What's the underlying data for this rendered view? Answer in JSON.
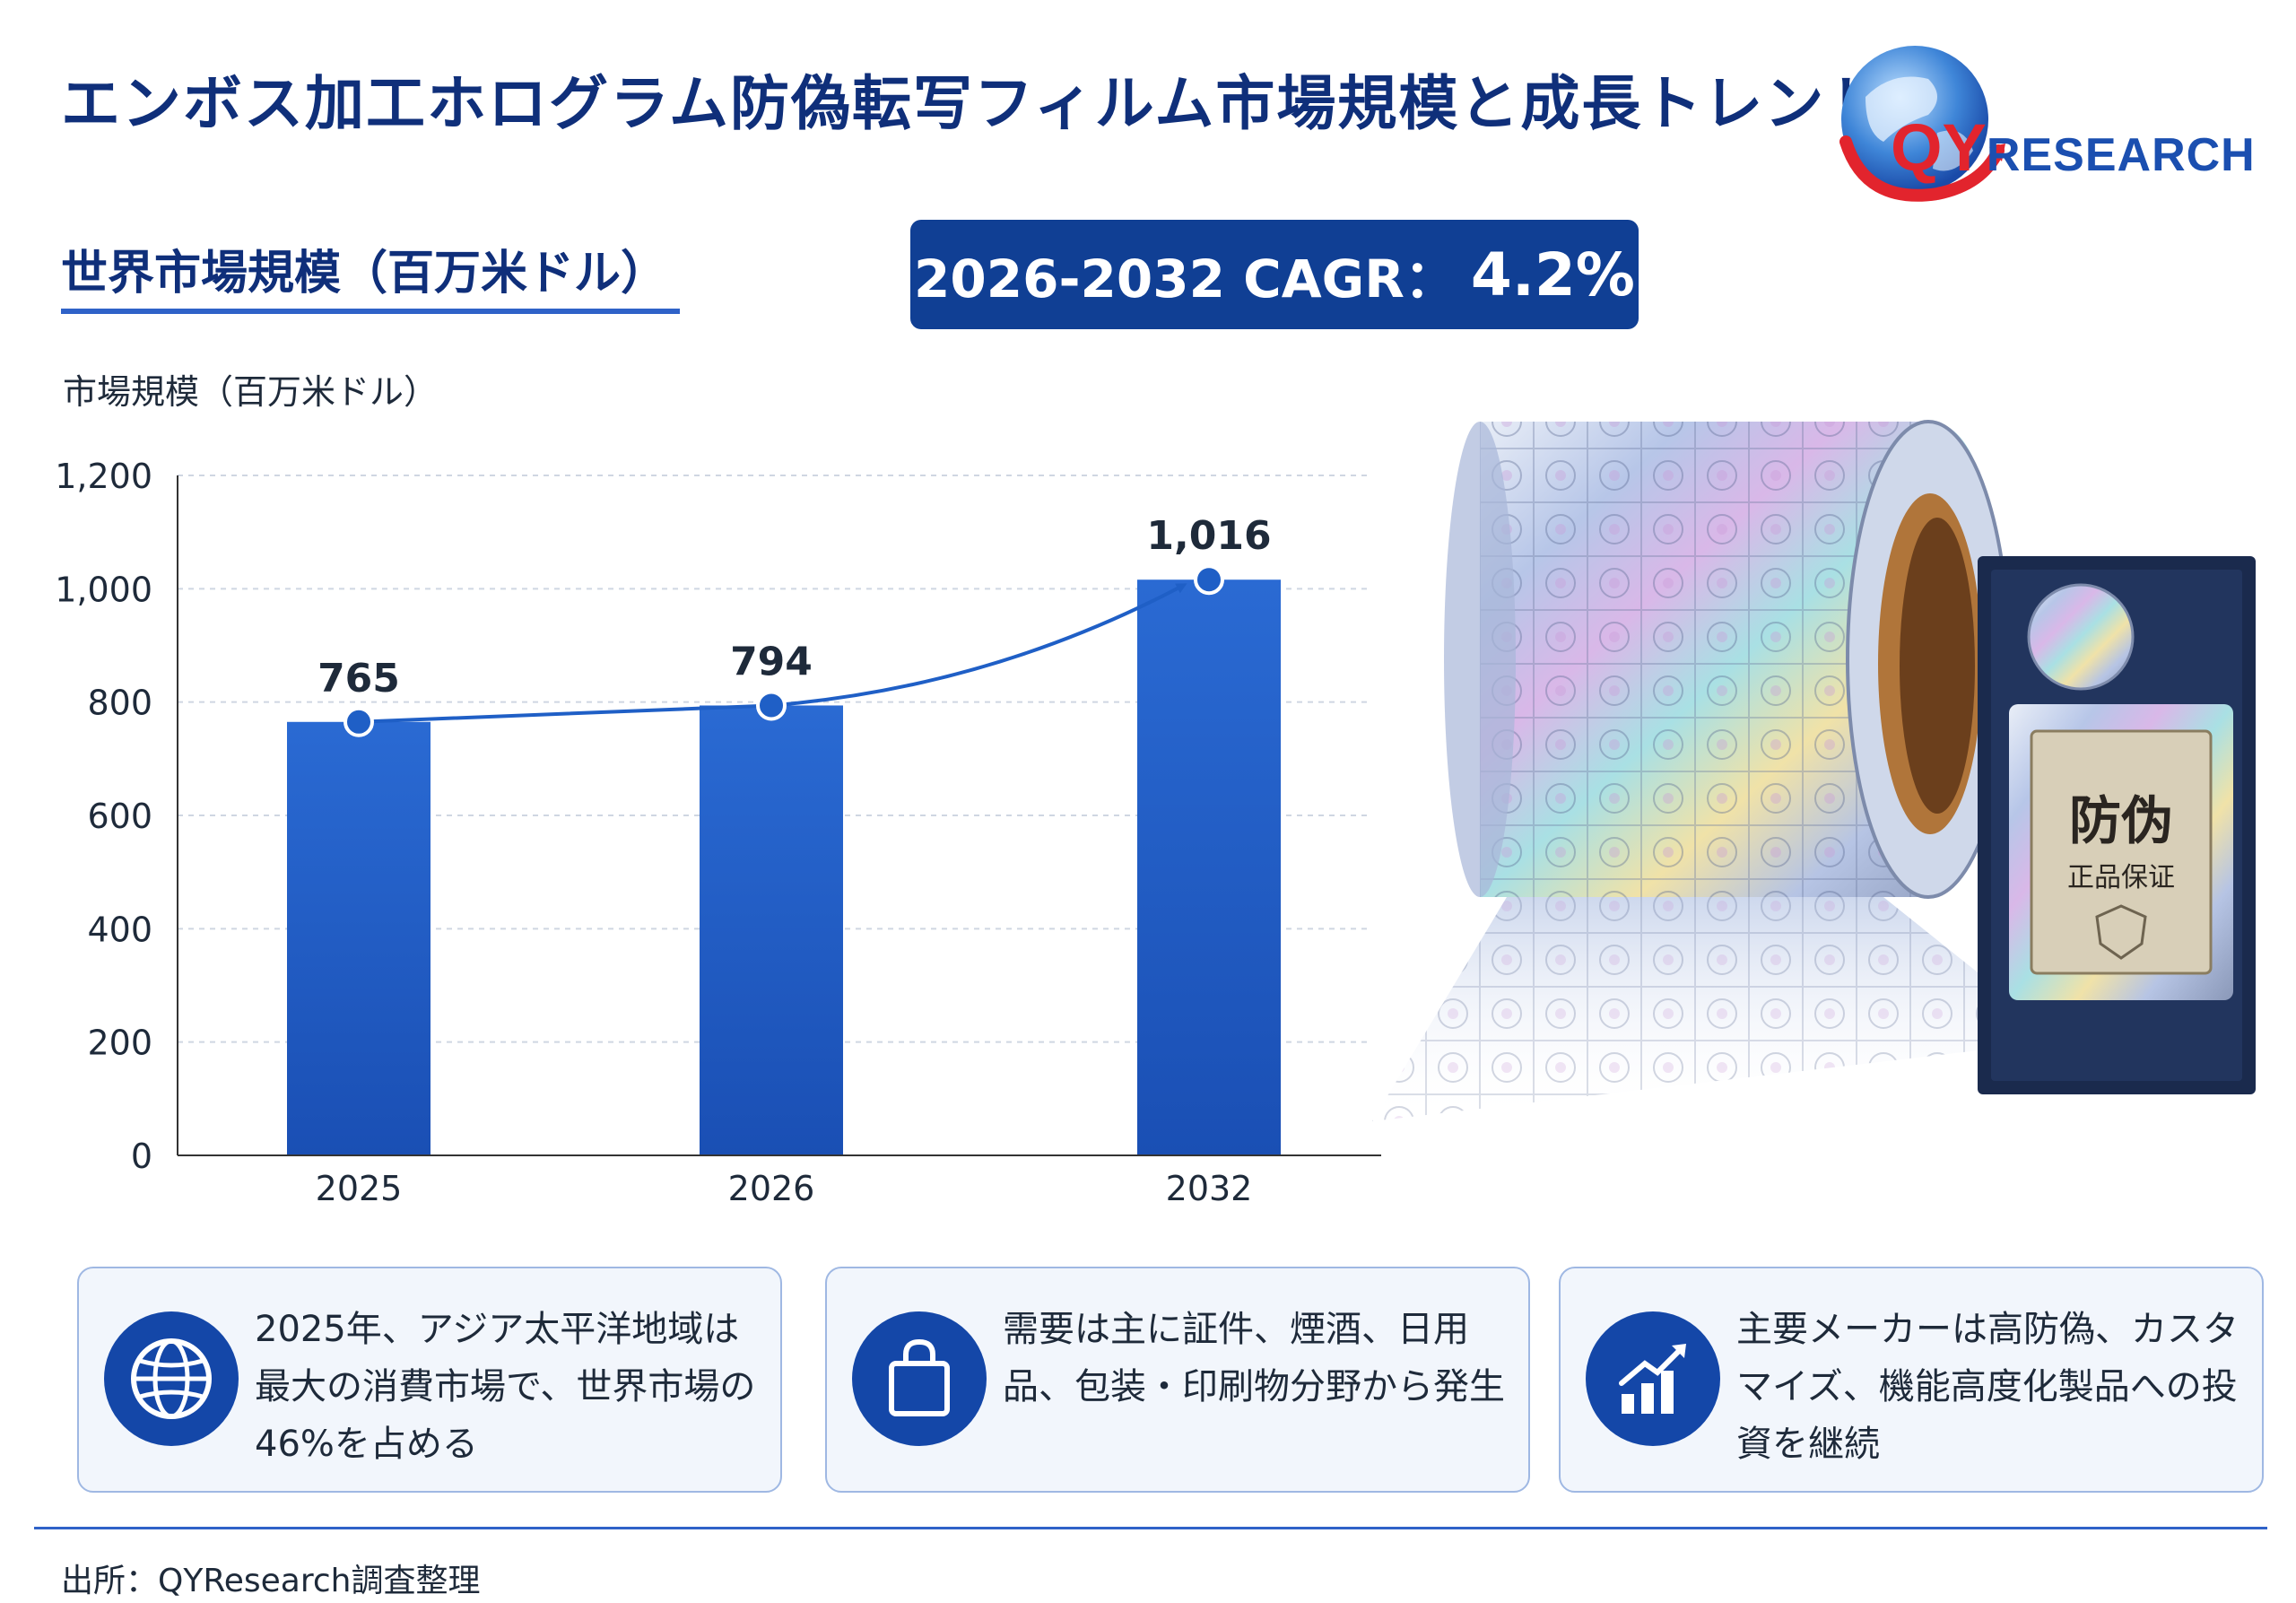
{
  "title": "エンボス加工ホログラム防偽転写フィルム市場規模と成長トレンド",
  "logo": {
    "brand_q": "QY",
    "brand_rest": "RESEARCH"
  },
  "subtitle": "世界市場規模（百万米ドル）",
  "cagr": {
    "label": "2026-2032 CAGR：",
    "value": "4.2%"
  },
  "chart_data": {
    "type": "bar",
    "ylabel": "市場規模（百万米ドル）",
    "categories": [
      "2025",
      "2026",
      "2032"
    ],
    "values": [
      765,
      794,
      1016
    ],
    "data_labels": [
      "765",
      "794",
      "1,016"
    ],
    "ylim": [
      0,
      1200
    ],
    "yticks": [
      0,
      200,
      400,
      600,
      800,
      1000,
      1200
    ],
    "ytick_labels": [
      "0",
      "200",
      "400",
      "600",
      "800",
      "1,000",
      "1,200"
    ],
    "grid": true,
    "bar_color": "#1f5fc6",
    "trend_color": "#1f5fc6"
  },
  "product_image": {
    "seal_main": "防伪",
    "seal_sub": "正品保证"
  },
  "cards": [
    {
      "icon": "globe-icon",
      "text": "2025年、アジア太平洋地域は最大の消費市場で、世界市場の46%を占める"
    },
    {
      "icon": "shopping-bag-icon",
      "text": "需要は主に証件、煙酒、日用品、包装・印刷物分野から発生"
    },
    {
      "icon": "growth-chart-icon",
      "text": "主要メーカーは高防偽、カスタマイズ、機能高度化製品への投資を継続"
    }
  ],
  "source": "出所：QYResearch調査整理",
  "colors": {
    "navy": "#0f2f7a",
    "accent": "#1447a8",
    "brand_red": "#e2242d"
  }
}
